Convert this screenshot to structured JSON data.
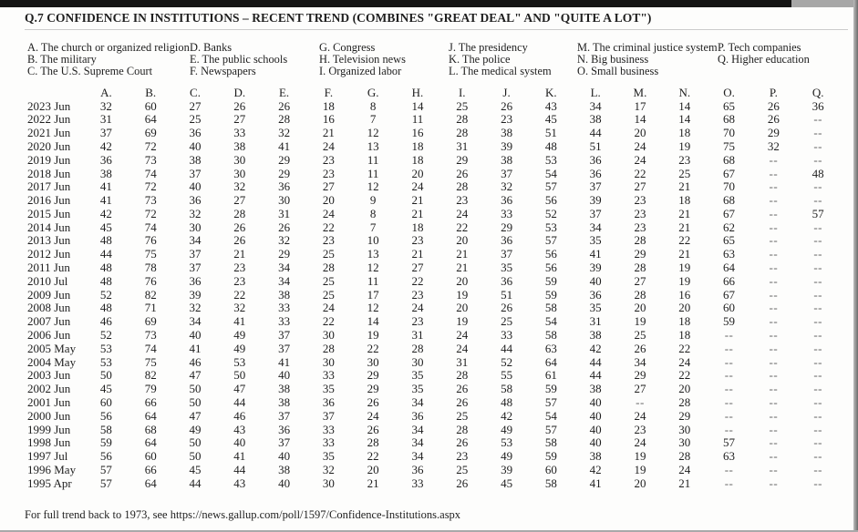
{
  "page": {
    "title": "Q.7 CONFIDENCE IN INSTITUTIONS – RECENT TREND (COMBINES \"GREAT DEAL\" AND \"QUITE A LOT\")",
    "footer_prefix": "For full trend back to 1973, see ",
    "footer_url": "https://news.gallup.com/poll/1597/Confidence-Institutions.aspx"
  },
  "legend": {
    "columns": [
      [
        "A. The church or organized religion",
        "B. The military",
        "C. The U.S. Supreme Court"
      ],
      [
        "D. Banks",
        "E. The public schools",
        "F. Newspapers"
      ],
      [
        "G. Congress",
        "H. Television news",
        "I. Organized labor"
      ],
      [
        "J. The presidency",
        "K. The police",
        "L. The medical system"
      ],
      [
        "M. The criminal justice system",
        "N. Big business",
        "O. Small business"
      ],
      [
        "P. Tech companies",
        "Q. Higher education"
      ]
    ]
  },
  "table": {
    "columns": [
      "A.",
      "B.",
      "C.",
      "D.",
      "E.",
      "F.",
      "G.",
      "H.",
      "I.",
      "J.",
      "K.",
      "L.",
      "M.",
      "N.",
      "O.",
      "P.",
      "Q."
    ],
    "rows": [
      {
        "label": "2023 Jun",
        "values": [
          "32",
          "60",
          "27",
          "26",
          "26",
          "18",
          "8",
          "14",
          "25",
          "26",
          "43",
          "34",
          "17",
          "14",
          "65",
          "26",
          "36"
        ]
      },
      {
        "label": "2022 Jun",
        "values": [
          "31",
          "64",
          "25",
          "27",
          "28",
          "16",
          "7",
          "11",
          "28",
          "23",
          "45",
          "38",
          "14",
          "14",
          "68",
          "26",
          "--"
        ]
      },
      {
        "label": "2021 Jun",
        "values": [
          "37",
          "69",
          "36",
          "33",
          "32",
          "21",
          "12",
          "16",
          "28",
          "38",
          "51",
          "44",
          "20",
          "18",
          "70",
          "29",
          "--"
        ]
      },
      {
        "label": "2020 Jun",
        "values": [
          "42",
          "72",
          "40",
          "38",
          "41",
          "24",
          "13",
          "18",
          "31",
          "39",
          "48",
          "51",
          "24",
          "19",
          "75",
          "32",
          "--"
        ]
      },
      {
        "label": "2019 Jun",
        "values": [
          "36",
          "73",
          "38",
          "30",
          "29",
          "23",
          "11",
          "18",
          "29",
          "38",
          "53",
          "36",
          "24",
          "23",
          "68",
          "--",
          "--"
        ]
      },
      {
        "label": "2018 Jun",
        "values": [
          "38",
          "74",
          "37",
          "30",
          "29",
          "23",
          "11",
          "20",
          "26",
          "37",
          "54",
          "36",
          "22",
          "25",
          "67",
          "--",
          "48"
        ]
      },
      {
        "label": "2017 Jun",
        "values": [
          "41",
          "72",
          "40",
          "32",
          "36",
          "27",
          "12",
          "24",
          "28",
          "32",
          "57",
          "37",
          "27",
          "21",
          "70",
          "--",
          "--"
        ]
      },
      {
        "label": "2016 Jun",
        "values": [
          "41",
          "73",
          "36",
          "27",
          "30",
          "20",
          "9",
          "21",
          "23",
          "36",
          "56",
          "39",
          "23",
          "18",
          "68",
          "--",
          "--"
        ]
      },
      {
        "label": "2015 Jun",
        "values": [
          "42",
          "72",
          "32",
          "28",
          "31",
          "24",
          "8",
          "21",
          "24",
          "33",
          "52",
          "37",
          "23",
          "21",
          "67",
          "--",
          "57"
        ]
      },
      {
        "label": "2014 Jun",
        "values": [
          "45",
          "74",
          "30",
          "26",
          "26",
          "22",
          "7",
          "18",
          "22",
          "29",
          "53",
          "34",
          "23",
          "21",
          "62",
          "--",
          "--"
        ]
      },
      {
        "label": "2013 Jun",
        "values": [
          "48",
          "76",
          "34",
          "26",
          "32",
          "23",
          "10",
          "23",
          "20",
          "36",
          "57",
          "35",
          "28",
          "22",
          "65",
          "--",
          "--"
        ]
      },
      {
        "label": "2012 Jun",
        "values": [
          "44",
          "75",
          "37",
          "21",
          "29",
          "25",
          "13",
          "21",
          "21",
          "37",
          "56",
          "41",
          "29",
          "21",
          "63",
          "--",
          "--"
        ]
      },
      {
        "label": "2011 Jun",
        "values": [
          "48",
          "78",
          "37",
          "23",
          "34",
          "28",
          "12",
          "27",
          "21",
          "35",
          "56",
          "39",
          "28",
          "19",
          "64",
          "--",
          "--"
        ]
      },
      {
        "label": "2010 Jul",
        "values": [
          "48",
          "76",
          "36",
          "23",
          "34",
          "25",
          "11",
          "22",
          "20",
          "36",
          "59",
          "40",
          "27",
          "19",
          "66",
          "--",
          "--"
        ]
      },
      {
        "label": "2009 Jun",
        "values": [
          "52",
          "82",
          "39",
          "22",
          "38",
          "25",
          "17",
          "23",
          "19",
          "51",
          "59",
          "36",
          "28",
          "16",
          "67",
          "--",
          "--"
        ]
      },
      {
        "label": "2008 Jun",
        "values": [
          "48",
          "71",
          "32",
          "32",
          "33",
          "24",
          "12",
          "24",
          "20",
          "26",
          "58",
          "35",
          "20",
          "20",
          "60",
          "--",
          "--"
        ]
      },
      {
        "label": "2007 Jun",
        "values": [
          "46",
          "69",
          "34",
          "41",
          "33",
          "22",
          "14",
          "23",
          "19",
          "25",
          "54",
          "31",
          "19",
          "18",
          "59",
          "--",
          "--"
        ]
      },
      {
        "label": "2006 Jun",
        "values": [
          "52",
          "73",
          "40",
          "49",
          "37",
          "30",
          "19",
          "31",
          "24",
          "33",
          "58",
          "38",
          "25",
          "18",
          "--",
          "--",
          "--"
        ]
      },
      {
        "label": "2005 May",
        "values": [
          "53",
          "74",
          "41",
          "49",
          "37",
          "28",
          "22",
          "28",
          "24",
          "44",
          "63",
          "42",
          "26",
          "22",
          "--",
          "--",
          "--"
        ]
      },
      {
        "label": "2004 May",
        "values": [
          "53",
          "75",
          "46",
          "53",
          "41",
          "30",
          "30",
          "30",
          "31",
          "52",
          "64",
          "44",
          "34",
          "24",
          "--",
          "--",
          "--"
        ]
      },
      {
        "label": "2003 Jun",
        "values": [
          "50",
          "82",
          "47",
          "50",
          "40",
          "33",
          "29",
          "35",
          "28",
          "55",
          "61",
          "44",
          "29",
          "22",
          "--",
          "--",
          "--"
        ]
      },
      {
        "label": "2002 Jun",
        "values": [
          "45",
          "79",
          "50",
          "47",
          "38",
          "35",
          "29",
          "35",
          "26",
          "58",
          "59",
          "38",
          "27",
          "20",
          "--",
          "--",
          "--"
        ]
      },
      {
        "label": "2001 Jun",
        "values": [
          "60",
          "66",
          "50",
          "44",
          "38",
          "36",
          "26",
          "34",
          "26",
          "48",
          "57",
          "40",
          "--",
          "28",
          "--",
          "--",
          "--"
        ]
      },
      {
        "label": "2000 Jun",
        "values": [
          "56",
          "64",
          "47",
          "46",
          "37",
          "37",
          "24",
          "36",
          "25",
          "42",
          "54",
          "40",
          "24",
          "29",
          "--",
          "--",
          "--"
        ]
      },
      {
        "label": "1999 Jun",
        "values": [
          "58",
          "68",
          "49",
          "43",
          "36",
          "33",
          "26",
          "34",
          "28",
          "49",
          "57",
          "40",
          "23",
          "30",
          "--",
          "--",
          "--"
        ]
      },
      {
        "label": "1998 Jun",
        "values": [
          "59",
          "64",
          "50",
          "40",
          "37",
          "33",
          "28",
          "34",
          "26",
          "53",
          "58",
          "40",
          "24",
          "30",
          "57",
          "--",
          "--"
        ]
      },
      {
        "label": "1997 Jul",
        "values": [
          "56",
          "60",
          "50",
          "41",
          "40",
          "35",
          "22",
          "34",
          "23",
          "49",
          "59",
          "38",
          "19",
          "28",
          "63",
          "--",
          "--"
        ]
      },
      {
        "label": "1996 May",
        "values": [
          "57",
          "66",
          "45",
          "44",
          "38",
          "32",
          "20",
          "36",
          "25",
          "39",
          "60",
          "42",
          "19",
          "24",
          "--",
          "--",
          "--"
        ]
      },
      {
        "label": "1995 Apr",
        "values": [
          "57",
          "64",
          "44",
          "43",
          "40",
          "30",
          "21",
          "33",
          "26",
          "45",
          "58",
          "41",
          "20",
          "21",
          "--",
          "--",
          "--"
        ]
      }
    ]
  }
}
